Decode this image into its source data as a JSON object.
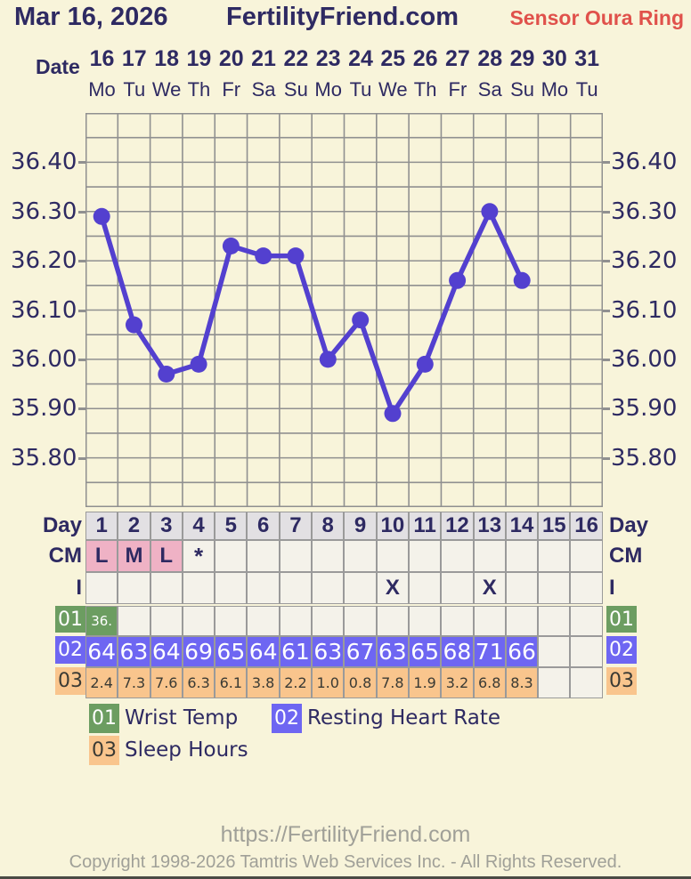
{
  "colors": {
    "background": "#f8f4da",
    "navy": "#2e2a62",
    "sensor_red": "#e0514b",
    "grid": "#909090",
    "line": "#5340cf",
    "header_cell_bg": "#e2e0e3",
    "empty_cell_bg": "#f4f2ea",
    "pink": "#efb2c5",
    "green": "#6c9d61",
    "blue": "#6e66f2",
    "orange": "#f9c58d",
    "footer_gray": "#a0a098"
  },
  "header": {
    "date": "Mar 16, 2026",
    "site": "FertilityFriend.com",
    "sensor": "Sensor Oura Ring"
  },
  "calendar": {
    "label": "Date",
    "dates": [
      "16",
      "17",
      "18",
      "19",
      "20",
      "21",
      "22",
      "23",
      "24",
      "25",
      "26",
      "27",
      "28",
      "29",
      "30",
      "31"
    ],
    "weekdays": [
      "Mo",
      "Tu",
      "We",
      "Th",
      "Fr",
      "Sa",
      "Su",
      "Mo",
      "Tu",
      "We",
      "Th",
      "Fr",
      "Sa",
      "Su",
      "Mo",
      "Tu"
    ]
  },
  "chart_data": {
    "type": "line",
    "x": [
      1,
      2,
      3,
      4,
      5,
      6,
      7,
      8,
      9,
      10,
      11,
      12,
      13,
      14
    ],
    "values": [
      36.29,
      36.07,
      35.97,
      35.99,
      36.23,
      36.21,
      36.21,
      36.0,
      36.08,
      35.89,
      35.99,
      36.16,
      36.3,
      36.16
    ],
    "x_columns": 16,
    "ylim": [
      35.7,
      36.5
    ],
    "y_grid_step": 0.05,
    "y_ticks": [
      36.4,
      36.3,
      36.2,
      36.1,
      36.0,
      35.9,
      35.8
    ],
    "y_tick_labels": [
      "36.40",
      "36.30",
      "36.20",
      "36.10",
      "36.00",
      "35.90",
      "35.80"
    ],
    "grid": true,
    "line_color": "#5340cf"
  },
  "table": {
    "day": {
      "label": "Day",
      "values": [
        "1",
        "2",
        "3",
        "4",
        "5",
        "6",
        "7",
        "8",
        "9",
        "10",
        "11",
        "12",
        "13",
        "14",
        "15",
        "16"
      ]
    },
    "cm": {
      "label": "CM",
      "values": [
        "L",
        "M",
        "L",
        "*",
        "",
        "",
        "",
        "",
        "",
        "",
        "",
        "",
        "",
        "",
        "",
        ""
      ],
      "pink_cols": [
        0,
        1,
        2
      ]
    },
    "intercourse": {
      "label": "I",
      "values": [
        "",
        "",
        "",
        "",
        "",
        "",
        "",
        "",
        "",
        "X",
        "",
        "",
        "X",
        "",
        "",
        ""
      ]
    },
    "rows": [
      {
        "id": "01",
        "values": [
          "36.",
          "",
          "",
          "",
          "",
          "",
          "",
          "",
          "",
          "",
          "",
          "",
          "",
          "",
          "",
          ""
        ]
      },
      {
        "id": "02",
        "values": [
          "64",
          "63",
          "64",
          "69",
          "65",
          "64",
          "61",
          "63",
          "67",
          "63",
          "65",
          "68",
          "71",
          "66",
          "",
          ""
        ]
      },
      {
        "id": "03",
        "values": [
          "2.4",
          "7.3",
          "7.6",
          "6.3",
          "6.1",
          "3.8",
          "2.2",
          "1.0",
          "0.8",
          "7.8",
          "1.9",
          "3.2",
          "6.8",
          "8.3",
          "",
          ""
        ]
      }
    ]
  },
  "legend": [
    {
      "id": "01",
      "label": "Wrist Temp"
    },
    {
      "id": "02",
      "label": "Resting Heart Rate"
    },
    {
      "id": "03",
      "label": "Sleep Hours"
    }
  ],
  "footer": {
    "url": "https://FertilityFriend.com",
    "copyright": "Copyright 1998-2026 Tamtris Web Services Inc. - All Rights Reserved."
  }
}
